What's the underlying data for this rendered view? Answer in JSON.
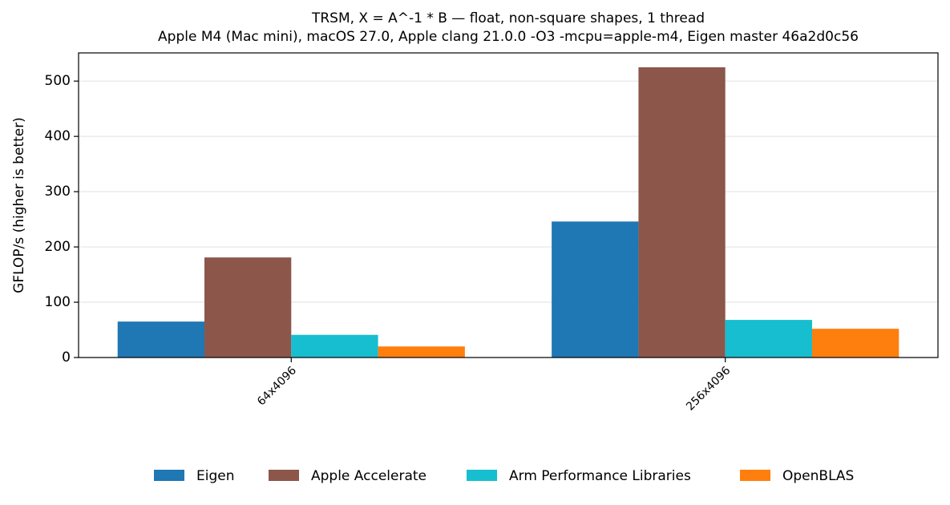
{
  "chart_data": {
    "type": "bar",
    "title": "TRSM, X = A^-1 * B — float, non-square shapes, 1 thread",
    "subtitle": "Apple M4 (Mac mini), macOS 27.0, Apple clang 21.0.0 -O3 -mcpu=apple-m4, Eigen master 46a2d0c56",
    "y_label": "GFLOP/s (higher is better)",
    "categories": [
      "64x4096",
      "256x4096"
    ],
    "series": [
      {
        "name": "Eigen",
        "color": "#1f77b4",
        "values": [
          65,
          246
        ]
      },
      {
        "name": "Apple Accelerate",
        "color": "#8c564b",
        "values": [
          181,
          525
        ]
      },
      {
        "name": "Arm Performance Libraries",
        "color": "#17becf",
        "values": [
          41,
          68
        ]
      },
      {
        "name": "OpenBLAS",
        "color": "#ff7f0e",
        "values": [
          20,
          52
        ]
      }
    ],
    "ylim": [
      0,
      551
    ],
    "yticks": [
      0,
      100,
      200,
      300,
      400,
      500
    ],
    "grid": true,
    "legend": "bottom"
  }
}
